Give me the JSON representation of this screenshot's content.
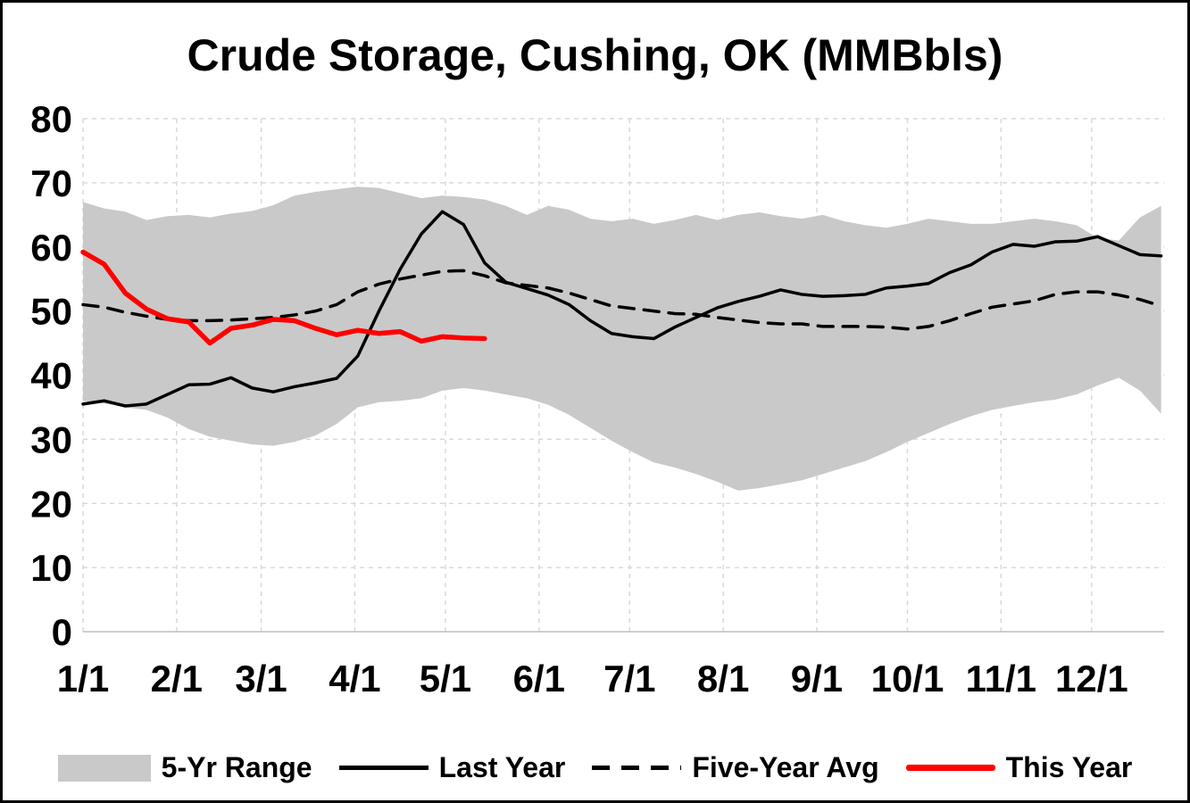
{
  "frame": {
    "border_color": "#000000",
    "background": "#ffffff"
  },
  "chart_data": {
    "type": "line",
    "title": "Crude Storage, Cushing, OK (MMBbls)",
    "xlabel": "",
    "ylabel": "",
    "ylim": [
      0,
      80
    ],
    "y_ticks": [
      0,
      10,
      20,
      30,
      40,
      50,
      60,
      70,
      80
    ],
    "x_tick_days": [
      1,
      32,
      60,
      91,
      121,
      152,
      182,
      213,
      244,
      274,
      305,
      335
    ],
    "x_tick_labels": [
      "1/1",
      "2/1",
      "3/1",
      "4/1",
      "5/1",
      "6/1",
      "7/1",
      "8/1",
      "9/1",
      "10/1",
      "11/1",
      "12/1"
    ],
    "x_days_domain": [
      1,
      359
    ],
    "grid": "dashed",
    "grid_color": "#d9d9d9",
    "axis_line_color": "#bfbfbf",
    "x": [
      1,
      8,
      15,
      22,
      29,
      36,
      43,
      50,
      57,
      64,
      71,
      78,
      85,
      92,
      99,
      106,
      113,
      120,
      127,
      134,
      141,
      148,
      155,
      162,
      169,
      176,
      183,
      190,
      197,
      204,
      211,
      218,
      225,
      232,
      239,
      246,
      253,
      260,
      267,
      274,
      281,
      288,
      295,
      302,
      309,
      316,
      323,
      330,
      337,
      344,
      351,
      358
    ],
    "band": {
      "name": "5-Yr Range",
      "color": "#c9c9c9",
      "upper": [
        67,
        66,
        65.5,
        64.2,
        64.8,
        65,
        64.6,
        65.2,
        65.6,
        66.5,
        68,
        68.6,
        69,
        69.4,
        69.2,
        68.4,
        67.6,
        68,
        67.8,
        67.4,
        66.4,
        65,
        66.4,
        65.8,
        64.4,
        64,
        64.4,
        63.6,
        64.2,
        65,
        64.2,
        65,
        65.4,
        64.8,
        64.4,
        65,
        64,
        63.4,
        63,
        63.6,
        64.4,
        64,
        63.6,
        63.6,
        64,
        64.4,
        64,
        63.4,
        61.4,
        61,
        64.6,
        66.4
      ],
      "lower": [
        36,
        35.6,
        35,
        34.6,
        33.4,
        31.6,
        30.4,
        29.8,
        29.2,
        29,
        29.6,
        30.6,
        32.4,
        35,
        35.8,
        36,
        36.4,
        37.6,
        38,
        37.6,
        37,
        36.4,
        35.4,
        33.8,
        31.8,
        29.8,
        28,
        26.4,
        25.6,
        24.6,
        23.4,
        22,
        22.4,
        23,
        23.6,
        24.6,
        25.6,
        26.6,
        28,
        29.6,
        31,
        32.4,
        33.6,
        34.6,
        35.2,
        35.8,
        36.2,
        37,
        38.4,
        39.6,
        37.6,
        34
      ]
    },
    "series": [
      {
        "name": "Last Year",
        "color": "#000000",
        "dash": "solid",
        "width": 3.5,
        "values": [
          35.5,
          36,
          35.2,
          35.5,
          37,
          38.5,
          38.6,
          39.6,
          38,
          37.4,
          38.2,
          38.8,
          39.5,
          43,
          50,
          56.5,
          62,
          65.5,
          63.5,
          57.5,
          54.5,
          53.5,
          52.5,
          51,
          48.5,
          46.5,
          46,
          45.7,
          47.5,
          49,
          50.5,
          51.5,
          52.3,
          53.3,
          52.6,
          52.3,
          52.4,
          52.6,
          53.6,
          53.9,
          54.3,
          56,
          57.2,
          59.2,
          60.4,
          60.1,
          60.8,
          60.9,
          61.6,
          60.2,
          58.8,
          58.6
        ]
      },
      {
        "name": "Five-Year Avg",
        "color": "#000000",
        "dash": "dashed",
        "width": 3.5,
        "values": [
          51,
          50.6,
          49.8,
          49.2,
          48.7,
          48.5,
          48.5,
          48.6,
          48.8,
          49,
          49.4,
          50,
          51,
          53,
          54.2,
          55,
          55.6,
          56.2,
          56.3,
          55.5,
          54.4,
          54,
          53.6,
          52.8,
          51.8,
          50.8,
          50.4,
          50,
          49.6,
          49.5,
          49,
          48.6,
          48.2,
          48,
          48,
          47.6,
          47.6,
          47.6,
          47.5,
          47.2,
          47.6,
          48.5,
          49.6,
          50.6,
          51.1,
          51.6,
          52.6,
          53,
          53,
          52.5,
          51.8,
          50.8
        ]
      },
      {
        "name": "This Year",
        "color": "#ff0000",
        "dash": "solid",
        "width": 5.5,
        "values": [
          59.2,
          57.3,
          52.8,
          50.3,
          48.8,
          48.3,
          45,
          47.3,
          47.8,
          48.7,
          48.5,
          47.3,
          46.3,
          47,
          46.5,
          46.8,
          45.3,
          46,
          45.8,
          45.7
        ]
      }
    ],
    "legend": {
      "position": "bottom",
      "entries": [
        "5-Yr Range",
        "Last Year",
        "Five-Year Avg",
        "This Year"
      ]
    }
  }
}
